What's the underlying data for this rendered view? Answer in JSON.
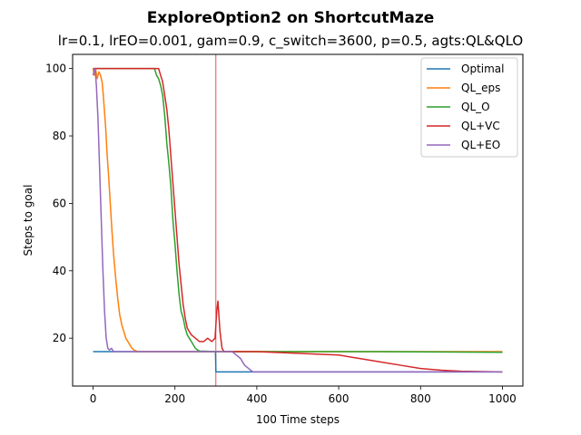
{
  "chart_data": {
    "type": "line",
    "title": "ExploreOption2 on ShortcutMaze",
    "subtitle": "lr=0.1, lrEO=0.001, gam=0.9, c_switch=3600, p=0.5, agts:QL&QLO",
    "xlabel": "100 Time steps",
    "ylabel": "Steps to goal",
    "xlim": [
      -50,
      1050
    ],
    "ylim": [
      5.8,
      104.2
    ],
    "xticks": [
      0,
      200,
      400,
      600,
      800,
      1000
    ],
    "yticks": [
      20,
      40,
      60,
      80,
      100
    ],
    "grid": false,
    "legend_position": "top-right",
    "vline": {
      "x": 300,
      "color": "#d62728"
    },
    "series": [
      {
        "name": "Optimal",
        "color": "#1f77b4",
        "points": [
          [
            0,
            16
          ],
          [
            299,
            16
          ],
          [
            300,
            10
          ],
          [
            1000,
            10
          ]
        ]
      },
      {
        "name": "QL_eps",
        "color": "#ff7f0e",
        "points": [
          [
            0,
            100
          ],
          [
            3,
            98
          ],
          [
            6,
            100
          ],
          [
            10,
            97
          ],
          [
            14,
            99
          ],
          [
            18,
            98
          ],
          [
            22,
            96
          ],
          [
            25,
            92
          ],
          [
            28,
            87
          ],
          [
            31,
            82
          ],
          [
            34,
            75
          ],
          [
            38,
            68
          ],
          [
            42,
            60
          ],
          [
            46,
            52
          ],
          [
            50,
            45
          ],
          [
            55,
            38
          ],
          [
            60,
            32
          ],
          [
            65,
            27
          ],
          [
            70,
            24
          ],
          [
            75,
            22
          ],
          [
            80,
            20
          ],
          [
            85,
            19
          ],
          [
            90,
            18
          ],
          [
            95,
            17
          ],
          [
            100,
            16.5
          ],
          [
            110,
            16
          ],
          [
            300,
            16
          ],
          [
            1000,
            16
          ]
        ]
      },
      {
        "name": "QL_O",
        "color": "#2ca02c",
        "points": [
          [
            0,
            100
          ],
          [
            150,
            100
          ],
          [
            155,
            98
          ],
          [
            160,
            97
          ],
          [
            165,
            95
          ],
          [
            170,
            92
          ],
          [
            175,
            86
          ],
          [
            180,
            78
          ],
          [
            185,
            72
          ],
          [
            190,
            65
          ],
          [
            195,
            55
          ],
          [
            200,
            48
          ],
          [
            205,
            40
          ],
          [
            210,
            33
          ],
          [
            215,
            28
          ],
          [
            220,
            26
          ],
          [
            225,
            23
          ],
          [
            230,
            21
          ],
          [
            235,
            20
          ],
          [
            240,
            19
          ],
          [
            245,
            18
          ],
          [
            250,
            17
          ],
          [
            255,
            16.5
          ],
          [
            260,
            16.2
          ],
          [
            300,
            16
          ],
          [
            700,
            16
          ],
          [
            1000,
            15.8
          ]
        ]
      },
      {
        "name": "QL+VC",
        "color": "#d62728",
        "points": [
          [
            0,
            100
          ],
          [
            160,
            100
          ],
          [
            165,
            98
          ],
          [
            170,
            96
          ],
          [
            175,
            92
          ],
          [
            180,
            88
          ],
          [
            185,
            82
          ],
          [
            190,
            74
          ],
          [
            195,
            66
          ],
          [
            200,
            58
          ],
          [
            205,
            50
          ],
          [
            210,
            42
          ],
          [
            215,
            36
          ],
          [
            220,
            30
          ],
          [
            225,
            26
          ],
          [
            230,
            23
          ],
          [
            240,
            21
          ],
          [
            250,
            20
          ],
          [
            260,
            19
          ],
          [
            270,
            19
          ],
          [
            280,
            20
          ],
          [
            290,
            19
          ],
          [
            298,
            20
          ],
          [
            302,
            28
          ],
          [
            305,
            31
          ],
          [
            310,
            22
          ],
          [
            315,
            17
          ],
          [
            320,
            16
          ],
          [
            400,
            16
          ],
          [
            500,
            15.5
          ],
          [
            600,
            15
          ],
          [
            650,
            14
          ],
          [
            700,
            13
          ],
          [
            750,
            12
          ],
          [
            800,
            11
          ],
          [
            850,
            10.5
          ],
          [
            900,
            10.2
          ],
          [
            1000,
            10
          ]
        ]
      },
      {
        "name": "QL+EO",
        "color": "#9467bd",
        "points": [
          [
            0,
            98
          ],
          [
            2,
            99
          ],
          [
            5,
            100
          ],
          [
            8,
            95
          ],
          [
            12,
            85
          ],
          [
            16,
            70
          ],
          [
            20,
            55
          ],
          [
            24,
            40
          ],
          [
            28,
            28
          ],
          [
            32,
            20
          ],
          [
            36,
            17
          ],
          [
            40,
            16.5
          ],
          [
            45,
            17
          ],
          [
            50,
            16
          ],
          [
            300,
            16
          ],
          [
            340,
            16
          ],
          [
            350,
            15
          ],
          [
            360,
            14
          ],
          [
            370,
            12
          ],
          [
            380,
            11
          ],
          [
            390,
            10
          ],
          [
            1000,
            10
          ]
        ]
      }
    ]
  }
}
